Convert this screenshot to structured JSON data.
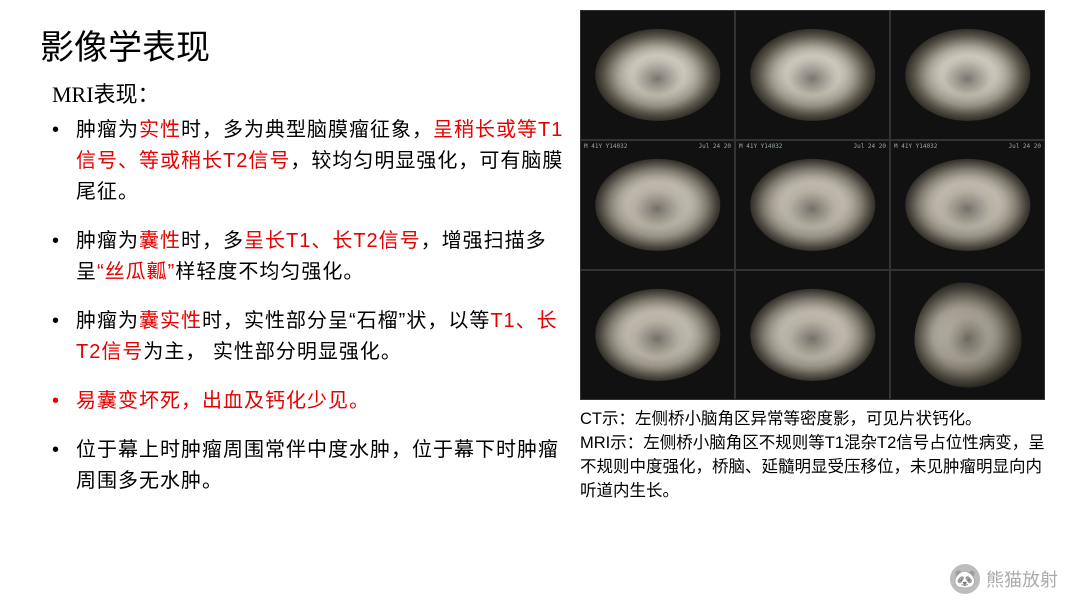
{
  "title": "影像学表现",
  "subtitle": "MRI表现：",
  "bullets": [
    {
      "parts": [
        {
          "t": "肿瘤为",
          "hl": false
        },
        {
          "t": "实性",
          "hl": true
        },
        {
          "t": "时，多为典型脑膜瘤征象，",
          "hl": false
        },
        {
          "t": "呈稍长或等T1信号、等或稍长T2信号",
          "hl": true
        },
        {
          "t": "，较均匀明显强化，可有脑膜尾征。",
          "hl": false
        }
      ],
      "redBullet": false
    },
    {
      "parts": [
        {
          "t": "肿瘤为",
          "hl": false
        },
        {
          "t": "囊性",
          "hl": true
        },
        {
          "t": "时，多",
          "hl": false
        },
        {
          "t": "呈长T1、长T2信号",
          "hl": true
        },
        {
          "t": "，增强扫描多呈",
          "hl": false
        },
        {
          "t": "“丝瓜瓤”",
          "hl": true
        },
        {
          "t": "样轻度不均匀强化。",
          "hl": false
        }
      ],
      "redBullet": false
    },
    {
      "parts": [
        {
          "t": "肿瘤为",
          "hl": false
        },
        {
          "t": "囊实性",
          "hl": true
        },
        {
          "t": "时，实性部分呈“石榴”状，以等",
          "hl": false
        },
        {
          "t": "T1、长T2信号",
          "hl": true
        },
        {
          "t": "为主， 实性部分明显强化。",
          "hl": false
        }
      ],
      "redBullet": false
    },
    {
      "parts": [
        {
          "t": "易囊变坏死，出血及钙化少见。",
          "hl": true
        }
      ],
      "redBullet": true
    },
    {
      "parts": [
        {
          "t": "位于幕上时肿瘤周围常伴中度水肿，位于幕下时肿瘤周围多无水肿。",
          "hl": false
        }
      ],
      "redBullet": false
    }
  ],
  "imageGrid": {
    "rows": 3,
    "cols": 3,
    "background": "#000000",
    "cells": [
      {
        "type": "ct",
        "label_tl": "",
        "label_tr": ""
      },
      {
        "type": "ct",
        "label_tl": "",
        "label_tr": ""
      },
      {
        "type": "ct",
        "label_tl": "",
        "label_tr": ""
      },
      {
        "type": "mri",
        "label_tl": "M 41Y Y14032",
        "label_tr": "Jul 24 20"
      },
      {
        "type": "mri",
        "label_tl": "M 41Y Y14032",
        "label_tr": "Jul 24 20"
      },
      {
        "type": "mri",
        "label_tl": "M 41Y Y14032",
        "label_tr": "Jul 24 20"
      },
      {
        "type": "mri",
        "label_tl": "",
        "label_tr": ""
      },
      {
        "type": "mri",
        "label_tl": "",
        "label_tr": ""
      },
      {
        "type": "sag",
        "label_tl": "",
        "label_tr": ""
      }
    ]
  },
  "caption_ct": "CT示：左侧桥小脑角区异常等密度影，可见片状钙化。",
  "caption_mri": "MRI示：左侧桥小脑角区不规则等T1混杂T2信号占位性病变，呈不规则中度强化，桥脑、延髓明显受压移位，未见肿瘤明显向内听道内生长。",
  "watermark": {
    "icon": "🐼",
    "text": "熊猫放射"
  }
}
